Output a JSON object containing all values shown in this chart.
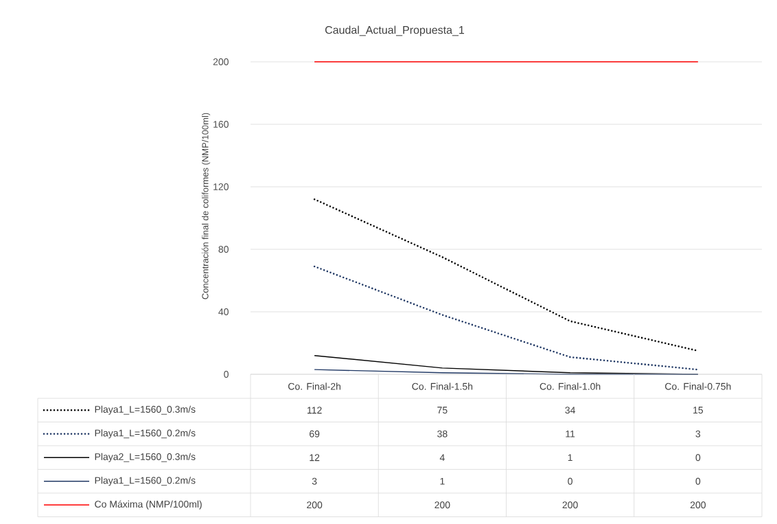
{
  "chart_data": {
    "type": "line",
    "title": "Caudal_Actual_Propuesta_1",
    "ylabel": "Concentración final de coliformes (NMP/100ml)",
    "categories": [
      "Co. Final-2h",
      "Co. Final-1.5h",
      "Co. Final-1.0h",
      "Co. Final-0.75h"
    ],
    "series": [
      {
        "name": "Playa1_L=1560_0.3m/s",
        "color": "#000000",
        "line_style": "dotted",
        "values": [
          112,
          75,
          34,
          15
        ]
      },
      {
        "name": "Playa1_L=1560_0.2m/s",
        "color": "#203864",
        "line_style": "dotted",
        "values": [
          69,
          38,
          11,
          3
        ]
      },
      {
        "name": "Playa2_L=1560_0.3m/s",
        "color": "#000000",
        "line_style": "solid",
        "values": [
          12,
          4,
          1,
          0
        ]
      },
      {
        "name": "Playa1_L=1560_0.2m/s",
        "color": "#203864",
        "line_style": "solid",
        "values": [
          3,
          1,
          0,
          0
        ]
      },
      {
        "name": "Co Máxima (NMP/100ml)",
        "color": "#ff0000",
        "line_style": "solid",
        "values": [
          200,
          200,
          200,
          200
        ]
      }
    ],
    "ylim": [
      0,
      200
    ],
    "yticks": [
      0,
      40,
      80,
      120,
      160,
      200
    ],
    "grid": "y",
    "legend": "bottom",
    "data_labels": true
  }
}
